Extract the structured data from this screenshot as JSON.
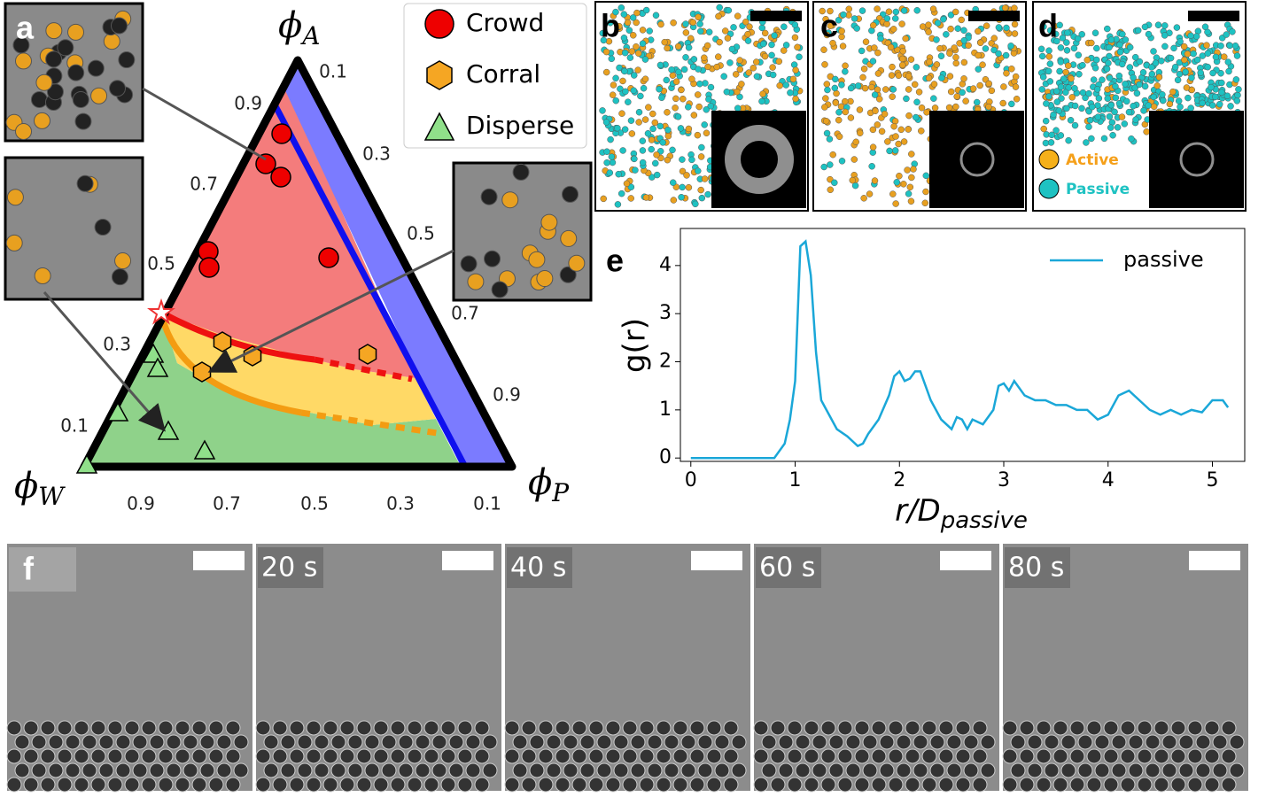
{
  "panel_labels": [
    "a",
    "b",
    "c",
    "d",
    "e",
    "f"
  ],
  "ternary": {
    "axis_labels": [
      {
        "symbol": "ϕ",
        "subscript": "A"
      },
      {
        "symbol": "ϕ",
        "subscript": "W"
      },
      {
        "symbol": "ϕ",
        "subscript": "P"
      }
    ],
    "left_ticks": [
      "0.9",
      "0.7",
      "0.5",
      "0.3",
      "0.1"
    ],
    "right_ticks": [
      "0.1",
      "0.3",
      "0.5",
      "0.7",
      "0.9"
    ],
    "bottom_ticks": [
      "0.9",
      "0.7",
      "0.5",
      "0.3",
      "0.1"
    ],
    "legend": [
      "Crowd",
      "Corral",
      "Disperse"
    ]
  },
  "panel_d_legend": [
    "Active",
    "Passive"
  ],
  "time_labels": [
    "20 s",
    "40 s",
    "60 s",
    "80 s"
  ],
  "chart_data": {
    "type": "line",
    "xlabel": {
      "main": "r/D",
      "subscript": "passive"
    },
    "ylabel": "g(r)",
    "x": [
      0,
      0.8,
      0.9,
      0.95,
      1.0,
      1.05,
      1.1,
      1.15,
      1.2,
      1.25,
      1.3,
      1.4,
      1.5,
      1.6,
      1.65,
      1.7,
      1.8,
      1.9,
      1.95,
      2.0,
      2.05,
      2.1,
      2.15,
      2.2,
      2.25,
      2.3,
      2.4,
      2.5,
      2.55,
      2.6,
      2.65,
      2.7,
      2.8,
      2.9,
      2.95,
      3.0,
      3.05,
      3.1,
      3.2,
      3.3,
      3.4,
      3.5,
      3.6,
      3.7,
      3.8,
      3.9,
      4.0,
      4.1,
      4.2,
      4.3,
      4.4,
      4.5,
      4.6,
      4.7,
      4.8,
      4.9,
      5.0,
      5.1,
      5.15
    ],
    "series": [
      {
        "name": "passive",
        "color": "#1aa7d8",
        "values": [
          0,
          0,
          0.3,
          0.8,
          1.6,
          4.4,
          4.5,
          3.8,
          2.2,
          1.2,
          1.0,
          0.6,
          0.45,
          0.25,
          0.3,
          0.5,
          0.8,
          1.3,
          1.7,
          1.8,
          1.6,
          1.65,
          1.8,
          1.8,
          1.5,
          1.2,
          0.8,
          0.6,
          0.85,
          0.8,
          0.6,
          0.8,
          0.7,
          1.0,
          1.5,
          1.55,
          1.4,
          1.6,
          1.3,
          1.2,
          1.2,
          1.1,
          1.1,
          1.0,
          1.0,
          0.8,
          0.9,
          1.3,
          1.4,
          1.2,
          1.0,
          0.9,
          1.0,
          0.9,
          1.0,
          0.95,
          1.2,
          1.2,
          1.05
        ]
      }
    ],
    "xlim": [
      -0.1,
      5.31
    ],
    "ylim": [
      -0.07,
      4.77
    ],
    "xticks": [
      0,
      1,
      2,
      3,
      4,
      5
    ],
    "yticks": [
      0,
      1,
      2,
      3,
      4
    ],
    "legend": "upper right"
  }
}
